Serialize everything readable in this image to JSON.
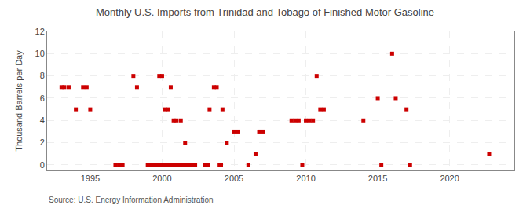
{
  "chart_data": {
    "type": "scatter",
    "title": "Monthly U.S. Imports from Trinidad and Tobago of Finished Motor Gasoline",
    "ylabel": "Thousand Barrels per Day",
    "source": "Source: U.S. Energy Information Administration",
    "color": "#cc0000",
    "marker": "square",
    "grid": true,
    "xlim": [
      1992.0,
      2024.5
    ],
    "ylim": [
      -0.5,
      12
    ],
    "xticks": [
      1995,
      2000,
      2005,
      2010,
      2015,
      2020
    ],
    "yticks": [
      0,
      2,
      4,
      6,
      8,
      10,
      12
    ],
    "x": [
      1993.0,
      1993.2,
      1993.5,
      1994.0,
      1994.5,
      1994.75,
      1995.0,
      1996.75,
      1997.0,
      1997.25,
      1998.0,
      1998.25,
      1999.0,
      1999.2,
      1999.4,
      1999.6,
      1999.8,
      2000.0,
      2000.1,
      2000.2,
      2000.3,
      2000.4,
      2000.5,
      2000.6,
      2000.7,
      2000.8,
      2000.9,
      2001.0,
      2001.1,
      2001.2,
      2001.3,
      2001.4,
      2001.5,
      2001.6,
      2001.7,
      2001.8,
      2002.0,
      2002.1,
      2002.2,
      2002.3,
      2003.0,
      2003.1,
      2003.2,
      2004.0,
      2004.1,
      1999.8,
      2000.0,
      2000.2,
      2000.4,
      2000.6,
      2000.8,
      2001.0,
      2001.3,
      2001.6,
      2003.3,
      2003.6,
      2003.8,
      2004.2,
      2004.5,
      2005.0,
      2005.3,
      2006.0,
      2006.5,
      2006.75,
      2007.0,
      2009.0,
      2009.25,
      2009.5,
      2009.75,
      2010.0,
      2010.25,
      2010.5,
      2010.75,
      2011.0,
      2011.25,
      2014.0,
      2015.0,
      2015.25,
      2016.0,
      2016.25,
      2017.0,
      2017.25,
      2022.75
    ],
    "values": [
      7,
      7,
      7,
      5,
      7,
      7,
      5,
      0,
      0,
      0,
      8,
      7,
      0,
      0,
      0,
      0,
      0,
      0,
      0,
      0,
      0,
      0,
      0,
      0,
      0,
      0,
      0,
      0,
      0,
      0,
      0,
      0,
      0,
      0,
      0,
      0,
      0,
      0,
      0,
      0,
      0,
      0,
      0,
      0,
      0,
      8,
      8,
      5,
      5,
      7,
      4,
      4,
      4,
      2,
      5,
      7,
      7,
      5,
      2,
      3,
      3,
      0,
      1,
      3,
      3,
      4,
      4,
      4,
      0,
      4,
      4,
      4,
      8,
      5,
      5,
      4,
      6,
      0,
      10,
      6,
      5,
      0,
      1
    ]
  }
}
